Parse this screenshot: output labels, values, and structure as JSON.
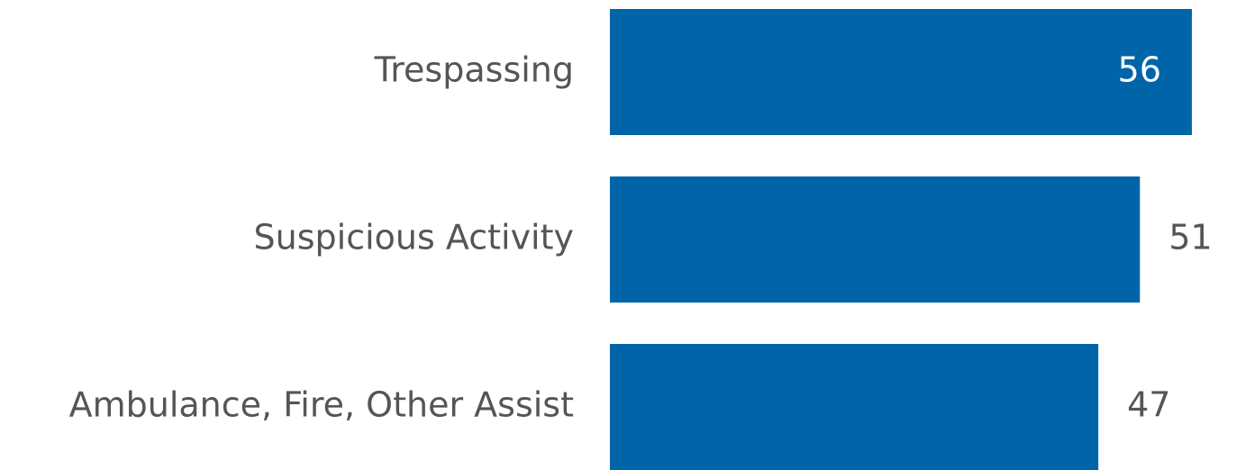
{
  "chart_data": {
    "type": "hbar",
    "categories": [
      "Trespassing",
      "Suspicious Activity",
      "Ambulance, Fire, Other Assist"
    ],
    "values": [
      56,
      51,
      47
    ],
    "color": "#0064a8"
  }
}
